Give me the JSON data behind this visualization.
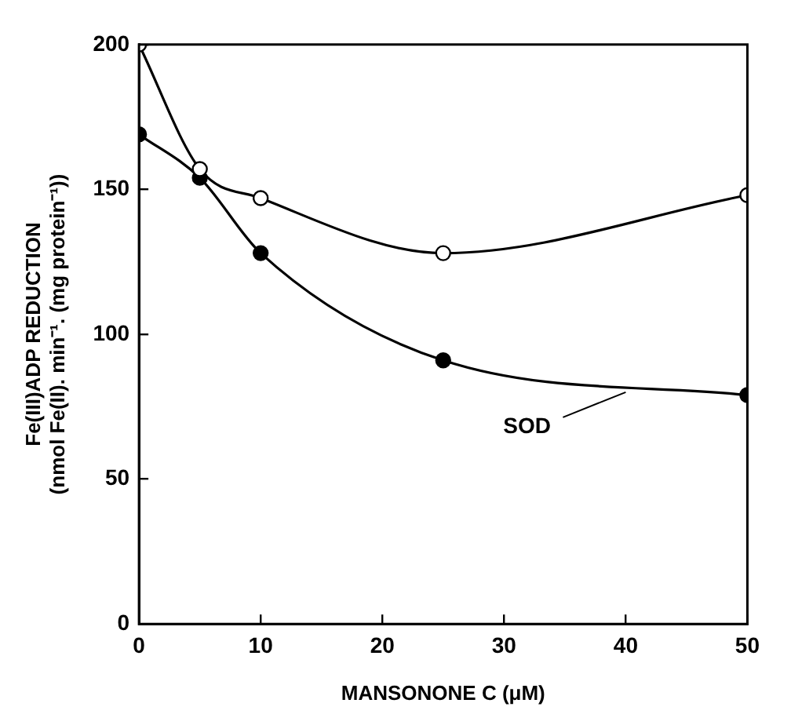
{
  "chart_data": {
    "type": "line",
    "xlabel": "MANSONONE C (μM)",
    "ylabel": "Fe(III)ADP REDUCTION\n(nmol Fe(II). min⁻¹. (mg protein⁻¹))",
    "x": [
      0,
      5,
      10,
      25,
      50
    ],
    "series": [
      {
        "color": "#ffffff",
        "values": [
          200,
          157,
          147,
          128,
          148
        ]
      },
      {
        "color": "#000000",
        "values": [
          169,
          154,
          128,
          91,
          79
        ]
      }
    ],
    "xlim": [
      0,
      50
    ],
    "xticks": [
      0,
      10,
      20,
      30,
      40,
      50
    ],
    "ylim": [
      0,
      200
    ],
    "yticks": [
      0,
      50,
      100,
      150,
      200
    ],
    "grid": false,
    "legend": false,
    "marker": "circle",
    "line_style": "solid",
    "annotations": [
      {
        "text": "SOD",
        "x": 40,
        "y": 80
      }
    ]
  }
}
